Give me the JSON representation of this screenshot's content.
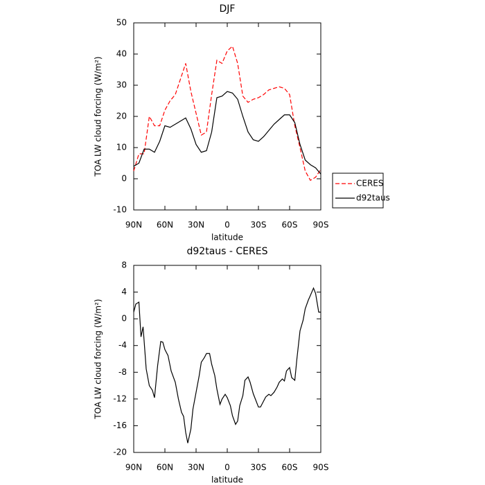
{
  "chart_data": [
    {
      "type": "line",
      "title": "DJF",
      "xlabel": "latitude",
      "ylabel": "TOA LW cloud forcing (W/m²)",
      "x": [
        90,
        85,
        80,
        75,
        70,
        65,
        60,
        55,
        50,
        45,
        40,
        35,
        30,
        25,
        20,
        15,
        10,
        5,
        0,
        -5,
        -10,
        -15,
        -20,
        -25,
        -30,
        -35,
        -40,
        -45,
        -50,
        -55,
        -60,
        -65,
        -70,
        -75,
        -80,
        -85,
        -90
      ],
      "xlim": [
        90,
        -90
      ],
      "xticks": [
        {
          "value": 90,
          "label": "90N"
        },
        {
          "value": 60,
          "label": "60N"
        },
        {
          "value": 30,
          "label": "30N"
        },
        0,
        {
          "value": -30,
          "label": "30S"
        },
        {
          "value": -60,
          "label": "60S"
        },
        {
          "value": -90,
          "label": "90S"
        }
      ],
      "ylim": [
        -10,
        50
      ],
      "yticks": [
        -10,
        0,
        10,
        20,
        30,
        40,
        50
      ],
      "legend": "right",
      "series": [
        {
          "name": "CERES",
          "color": "#ff0000",
          "dash": "dashed",
          "values": [
            2.5,
            8,
            8,
            20,
            17,
            17,
            22,
            25,
            27,
            32,
            37,
            28,
            21,
            14,
            15,
            27,
            38,
            37,
            41,
            42.5,
            37,
            26.5,
            24.5,
            25.5,
            26,
            27,
            28.5,
            29,
            29.5,
            29,
            27,
            17,
            10,
            2.5,
            -0.5,
            0.5,
            3
          ]
        },
        {
          "name": "d92taus",
          "color": "#000000",
          "dash": "solid",
          "values": [
            4,
            5,
            9.5,
            9.5,
            8.5,
            12,
            17,
            16.5,
            17.5,
            18.5,
            19.5,
            16,
            11,
            8.5,
            9,
            15,
            26,
            26.5,
            28,
            27.5,
            25.5,
            20,
            15,
            12.5,
            12,
            13.5,
            15.5,
            17.5,
            19,
            20.5,
            20.5,
            18,
            11,
            6,
            4.5,
            3.5,
            1.5
          ]
        }
      ]
    },
    {
      "type": "line",
      "title": "d92taus - CERES",
      "xlabel": "latitude",
      "ylabel": "TOA LW cloud forcing (W/m²)",
      "x": [
        90,
        88,
        85,
        83,
        81,
        78,
        75,
        72,
        70,
        67,
        64,
        62,
        60,
        57,
        54,
        50,
        47,
        44,
        42,
        40,
        38,
        35,
        33,
        30,
        27,
        25,
        22,
        20,
        17,
        15,
        12,
        10,
        7,
        5,
        2,
        0,
        -3,
        -5,
        -8,
        -10,
        -12,
        -15,
        -17,
        -20,
        -22,
        -25,
        -27,
        -30,
        -32,
        -35,
        -37,
        -40,
        -42,
        -45,
        -48,
        -50,
        -53,
        -55,
        -57,
        -60,
        -62,
        -65,
        -67,
        -70,
        -73,
        -75,
        -78,
        -80,
        -83,
        -85,
        -88,
        -90
      ],
      "xlim": [
        90,
        -90
      ],
      "xticks": [
        {
          "value": 90,
          "label": "90N"
        },
        {
          "value": 60,
          "label": "60N"
        },
        {
          "value": 30,
          "label": "30N"
        },
        0,
        {
          "value": -30,
          "label": "30S"
        },
        {
          "value": -60,
          "label": "60S"
        },
        {
          "value": -90,
          "label": "90S"
        }
      ],
      "ylim": [
        -20,
        8
      ],
      "yticks": [
        -20,
        -16,
        -12,
        -8,
        -4,
        0,
        4,
        8
      ],
      "color": "#000000",
      "values": [
        1,
        2.2,
        2.5,
        -2.7,
        -1.2,
        -7.5,
        -10,
        -10.7,
        -11.8,
        -7,
        -3.4,
        -3.5,
        -4.6,
        -5.5,
        -7.8,
        -9.5,
        -12,
        -14,
        -14.6,
        -17,
        -18.6,
        -16.5,
        -13.5,
        -11,
        -8.5,
        -6.5,
        -5.8,
        -5.2,
        -5.2,
        -6.8,
        -8.5,
        -10.5,
        -12.8,
        -12,
        -11.3,
        -11.8,
        -13,
        -14.5,
        -15.8,
        -15.3,
        -13,
        -11.5,
        -9.2,
        -8.7,
        -9.5,
        -11.2,
        -12,
        -13.2,
        -13.2,
        -12.3,
        -11.7,
        -11.3,
        -11.5,
        -11,
        -10.2,
        -9.5,
        -9,
        -9.3,
        -7.8,
        -7.3,
        -8.8,
        -9.2,
        -6,
        -1.8,
        -0.2,
        1.5,
        2.8,
        3.5,
        4.6,
        3.8,
        1,
        1
      ]
    }
  ]
}
